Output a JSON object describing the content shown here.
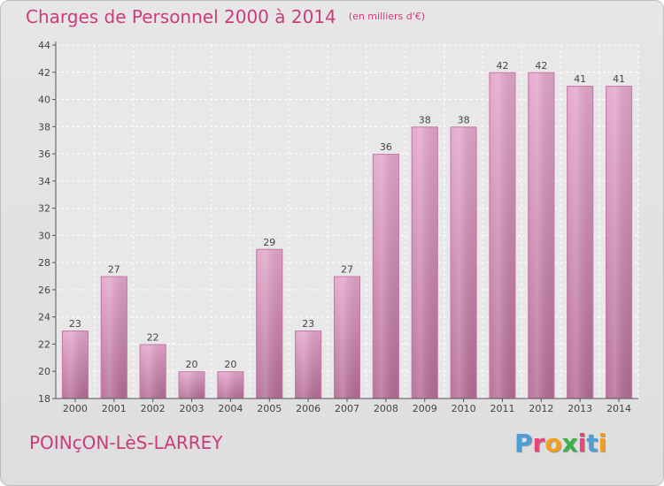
{
  "header": {
    "title": "Charges de Personnel 2000 à 2014",
    "subtitle": "(en milliers d'€)"
  },
  "footer": {
    "commune": "POINçON-LèS-LARREY",
    "logo_letters": [
      "P",
      "r",
      "o",
      "x",
      "i",
      "t",
      "i"
    ],
    "logo_colors": [
      "#4a9fd8",
      "#e8457a",
      "#f0a020",
      "#3db04b",
      "#e8457a",
      "#4a9fd8",
      "#f0a020"
    ]
  },
  "chart_data": {
    "type": "bar",
    "categories": [
      "2000",
      "2001",
      "2002",
      "2003",
      "2004",
      "2005",
      "2006",
      "2007",
      "2008",
      "2009",
      "2010",
      "2011",
      "2012",
      "2013",
      "2014"
    ],
    "values": [
      23,
      27,
      22,
      20,
      20,
      29,
      23,
      27,
      36,
      38,
      38,
      42,
      42,
      41,
      41
    ],
    "data_labels": [
      "23",
      "27",
      "22",
      "20",
      "20",
      "29",
      "23",
      "27",
      "36",
      "38",
      "38",
      "42",
      "42",
      "41",
      "41"
    ],
    "title": "Charges de Personnel 2000 à 2014",
    "xlabel": "",
    "ylabel": "",
    "ylim": [
      18,
      44
    ],
    "yticks": [
      18,
      20,
      22,
      24,
      26,
      28,
      30,
      32,
      34,
      36,
      38,
      40,
      42,
      44
    ],
    "ytick_labels": [
      "18",
      "20",
      "22",
      "24",
      "26",
      "28",
      "30",
      "32",
      "34",
      "36",
      "38",
      "40",
      "42",
      "44"
    ],
    "grid": true,
    "legend": "none",
    "bar_color": "#d98fb8"
  }
}
